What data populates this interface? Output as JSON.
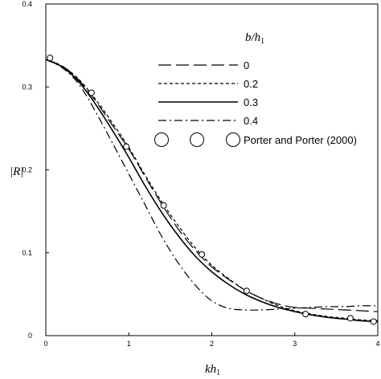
{
  "chart_data": {
    "type": "line",
    "xlabel": "kh",
    "xlabel_sub": "1",
    "ylabel": "|R|",
    "xlim": [
      0,
      4
    ],
    "ylim": [
      0,
      0.4
    ],
    "x_ticks": [
      "0",
      "1",
      "2",
      "3",
      "4"
    ],
    "y_ticks": [
      "0",
      "0.1",
      "0.2",
      "0.3",
      "0.4"
    ],
    "grid": false,
    "legend": {
      "title": "b/h",
      "title_sub": "1",
      "placement": "top-right"
    },
    "series": [
      {
        "name": "0",
        "style": "long-dash",
        "x": [
          0,
          0.2,
          0.4,
          0.6,
          0.8,
          1.0,
          1.2,
          1.4,
          1.6,
          1.8,
          2.0,
          2.2,
          2.4,
          2.6,
          2.8,
          3.0,
          3.2,
          3.4,
          3.6,
          3.8,
          4.0
        ],
        "y": [
          0.333,
          0.325,
          0.308,
          0.283,
          0.254,
          0.225,
          0.191,
          0.158,
          0.128,
          0.103,
          0.083,
          0.068,
          0.055,
          0.045,
          0.038,
          0.034,
          0.033,
          0.032,
          0.031,
          0.03,
          0.029
        ]
      },
      {
        "name": "0.2",
        "style": "short-dash",
        "x": [
          0,
          0.2,
          0.4,
          0.6,
          0.8,
          1.0,
          1.2,
          1.4,
          1.6,
          1.8,
          2.0,
          2.2,
          2.4,
          2.6,
          2.8,
          3.0,
          3.2,
          3.4,
          3.6,
          3.8,
          4.0
        ],
        "y": [
          0.333,
          0.325,
          0.309,
          0.285,
          0.257,
          0.227,
          0.193,
          0.161,
          0.132,
          0.106,
          0.085,
          0.069,
          0.055,
          0.045,
          0.036,
          0.03,
          0.026,
          0.023,
          0.021,
          0.019,
          0.018
        ]
      },
      {
        "name": "0.3",
        "style": "solid",
        "x": [
          0,
          0.2,
          0.4,
          0.6,
          0.8,
          1.0,
          1.2,
          1.4,
          1.6,
          1.8,
          2.0,
          2.2,
          2.4,
          2.6,
          2.8,
          3.0,
          3.2,
          3.4,
          3.6,
          3.8,
          4.0
        ],
        "y": [
          0.333,
          0.324,
          0.306,
          0.279,
          0.248,
          0.215,
          0.18,
          0.148,
          0.12,
          0.096,
          0.077,
          0.062,
          0.05,
          0.041,
          0.034,
          0.029,
          0.025,
          0.022,
          0.02,
          0.018,
          0.017
        ]
      },
      {
        "name": "0.4",
        "style": "dash-dot",
        "x": [
          0,
          0.2,
          0.4,
          0.6,
          0.8,
          1.0,
          1.2,
          1.4,
          1.6,
          1.8,
          2.0,
          2.2,
          2.4,
          2.6,
          2.8,
          3.0,
          3.2,
          3.4,
          3.6,
          3.8,
          4.0
        ],
        "y": [
          0.333,
          0.323,
          0.303,
          0.27,
          0.233,
          0.195,
          0.157,
          0.119,
          0.087,
          0.061,
          0.042,
          0.033,
          0.031,
          0.031,
          0.032,
          0.033,
          0.034,
          0.035,
          0.035,
          0.036,
          0.036
        ]
      },
      {
        "name": "Porter and Porter (2000)",
        "style": "markers",
        "x": [
          0.05,
          0.55,
          0.97,
          1.42,
          1.88,
          2.42,
          3.13,
          3.67,
          3.95
        ],
        "y": [
          0.335,
          0.293,
          0.228,
          0.157,
          0.098,
          0.054,
          0.026,
          0.021,
          0.017
        ]
      }
    ]
  }
}
